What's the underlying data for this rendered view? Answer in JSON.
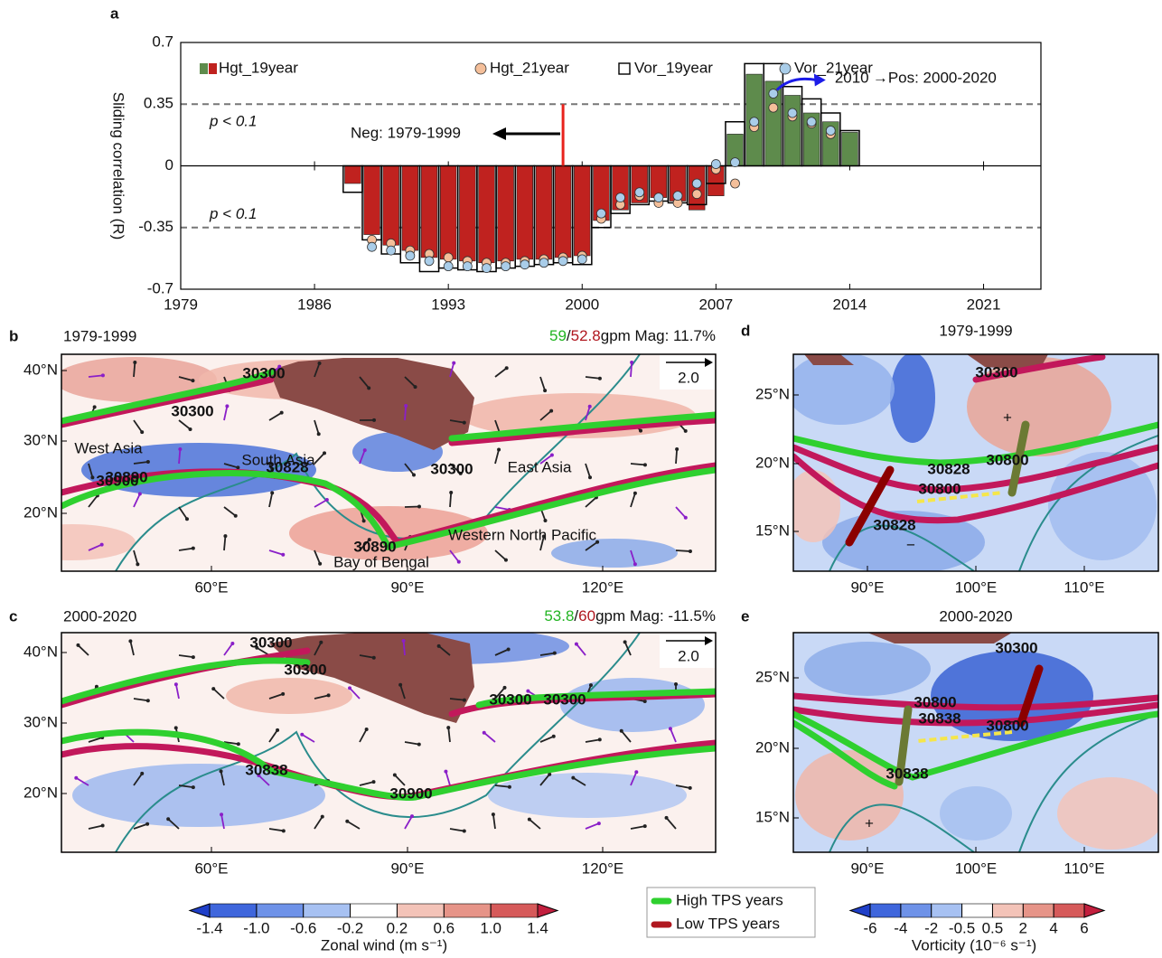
{
  "chart_data": {
    "type": "bar",
    "panel_label": "a",
    "y_label": "Sliding correlation (R)",
    "x": [
      1988,
      1989,
      1990,
      1991,
      1992,
      1993,
      1994,
      1995,
      1996,
      1997,
      1998,
      1999,
      2000,
      2001,
      2002,
      2003,
      2004,
      2005,
      2006,
      2007,
      2008,
      2009,
      2010,
      2011,
      2012,
      2013,
      2014
    ],
    "series": [
      {
        "name": "Hgt_19year",
        "style": "filled",
        "color": "#c0221f",
        "positive_color": "#5e8b4c",
        "values": [
          -0.1,
          -0.39,
          -0.45,
          -0.48,
          -0.52,
          -0.53,
          -0.54,
          -0.55,
          -0.54,
          -0.53,
          -0.53,
          -0.52,
          -0.51,
          -0.31,
          -0.25,
          -0.21,
          -0.18,
          -0.2,
          -0.25,
          -0.17,
          0.18,
          0.52,
          0.48,
          0.4,
          0.3,
          0.25,
          0.19
        ]
      },
      {
        "name": "Hgt_21year",
        "style": "dot",
        "color": "#f4bf9a",
        "values": [
          null,
          -0.42,
          -0.44,
          -0.48,
          -0.5,
          -0.52,
          -0.54,
          -0.55,
          -0.55,
          -0.54,
          -0.53,
          -0.52,
          -0.51,
          -0.3,
          -0.22,
          -0.17,
          -0.21,
          -0.21,
          -0.16,
          -0.02,
          -0.1,
          0.22,
          0.33,
          0.28,
          0.24,
          0.18,
          null
        ]
      },
      {
        "name": "Vor_19year",
        "style": "hollow",
        "color": "#000000",
        "values": [
          -0.15,
          -0.42,
          -0.5,
          -0.55,
          -0.6,
          -0.58,
          -0.59,
          -0.6,
          -0.58,
          -0.57,
          -0.56,
          -0.55,
          -0.56,
          -0.35,
          -0.27,
          -0.22,
          -0.2,
          -0.21,
          -0.22,
          -0.1,
          0.25,
          0.58,
          0.58,
          0.45,
          0.38,
          0.3,
          0.2
        ]
      },
      {
        "name": "Vor_21year",
        "style": "dot",
        "color": "#a9cde9",
        "values": [
          null,
          -0.46,
          -0.48,
          -0.51,
          -0.54,
          -0.57,
          -0.57,
          -0.58,
          -0.57,
          -0.56,
          -0.55,
          -0.54,
          -0.53,
          -0.27,
          -0.18,
          -0.15,
          -0.18,
          -0.17,
          -0.1,
          0.01,
          0.02,
          0.25,
          0.41,
          0.3,
          0.25,
          0.2,
          null
        ]
      }
    ],
    "xlim": [
      1979,
      2024
    ],
    "xticks": [
      1979,
      1986,
      1993,
      2000,
      2007,
      2014,
      2021
    ],
    "ylim": [
      -0.7,
      0.7
    ],
    "yticks": [
      -0.7,
      -0.35,
      0,
      0.35,
      0.7
    ],
    "ref_lines": [
      0.35,
      -0.35
    ],
    "split_year": 1999,
    "highlight_year": 2010,
    "annotations": {
      "p_upper": "p < 0.1",
      "p_lower": "p < 0.1",
      "neg": "Neg: 1979-1999",
      "highlight": "2010",
      "pos": "→Pos: 2000-2020"
    }
  },
  "maps": [
    {
      "label": "b",
      "period": "1979-1999",
      "mag": {
        "high": "59",
        "sep": "/",
        "low": "52.8",
        "rest": "gpm Mag: 11.7%"
      },
      "yticks": [
        "40°N",
        "30°N",
        "20°N"
      ],
      "xticks": [
        "60°E",
        "90°E",
        "120°E"
      ],
      "scale": "2.0",
      "annotations": [
        "West Asia",
        "South Asia",
        "East Asia",
        "Western North Pacific",
        "Bay of Bengal",
        30300,
        30828,
        30890,
        30300,
        30890,
        30300
      ]
    },
    {
      "label": "c",
      "period": "2000-2020",
      "mag": {
        "high": "53.8",
        "sep": "/",
        "low": "60",
        "rest": "gpm Mag: -11.5%"
      },
      "yticks": [
        "40°N",
        "30°N",
        "20°N"
      ],
      "xticks": [
        "60°E",
        "90°E",
        "120°E"
      ],
      "scale": "2.0",
      "annotations": [
        30300,
        30300,
        30300,
        30300,
        30900,
        30838,
        30900
      ]
    },
    {
      "label": "d",
      "period": "1979-1999",
      "yticks": [
        "25°N",
        "20°N",
        "15°N"
      ],
      "xticks": [
        "90°E",
        "100°E",
        "110°E"
      ],
      "annotations": [
        "+",
        "−",
        30300,
        30828,
        30800,
        30800,
        30828
      ]
    },
    {
      "label": "e",
      "period": "2000-2020",
      "yticks": [
        "25°N",
        "20°N",
        "15°N"
      ],
      "xticks": [
        "90°E",
        "100°E",
        "110°E"
      ],
      "annotations": [
        30300,
        "−",
        30800,
        30838,
        30800,
        30838,
        "+"
      ]
    }
  ],
  "legend": [
    "High TPS years",
    "Low TPS years"
  ],
  "colorbars": [
    {
      "title": "Zonal wind (m s⁻¹)",
      "ticks": [
        -1.4,
        {
          "value": -1,
          "label": "-1.0"
        },
        -0.6,
        -0.2,
        0.2,
        0.6,
        {
          "value": 1,
          "label": "1.0"
        },
        1.4
      ]
    },
    {
      "title": "Vorticity (10⁻⁶ s⁻¹)",
      "ticks": [
        -6,
        -4,
        -2,
        -0.5,
        0.5,
        2,
        4,
        6
      ]
    }
  ]
}
